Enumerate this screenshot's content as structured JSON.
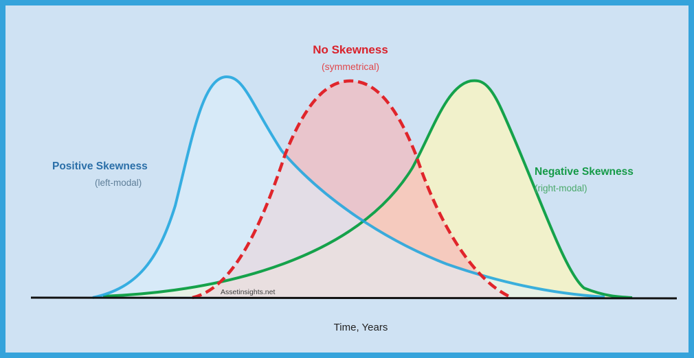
{
  "figure": {
    "negative_label": "Negative Skewness",
    "negative_sub": "(right-modal)",
    "positive_label": "Positive Skewness",
    "positive_sub": "(left-modal)",
    "none_label": "No Skewness",
    "none_sub": "(symmetrical)",
    "watermark": "Assetinsights.net",
    "axis_label": "Time, Years"
  },
  "colors": {
    "frame": "#35a3db",
    "background": "#cfe2f3",
    "positive_line": "#1aa3dd",
    "positive_fill": "#dff0fb",
    "none_line": "#e0252b",
    "none_fill": "#f7b6b7",
    "negative_line": "#15a24b",
    "negative_fill": "#f4f3c6",
    "axis": "#111111"
  }
}
